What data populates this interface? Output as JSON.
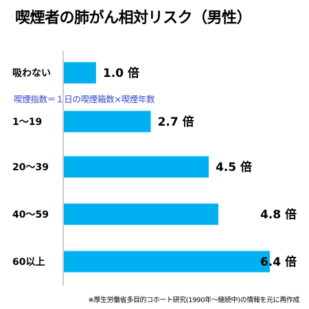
{
  "chart_data": {
    "type": "bar",
    "orientation": "horizontal",
    "title": "喫煙者の肺がん相対リスク（男性）",
    "categories": [
      "吸わない",
      "1～19",
      "20～39",
      "40～59",
      "60以上"
    ],
    "values": [
      1.0,
      2.7,
      4.5,
      4.8,
      6.4
    ],
    "value_labels": [
      "1.0 倍",
      "2.7 倍",
      "4.5 倍",
      "4.8 倍",
      "6.4 倍"
    ],
    "xlim": [
      0,
      6.4
    ],
    "grid": false,
    "legend": "none",
    "bar_color": "#00b0f0",
    "annotation": "喫煙指数＝１日の喫煙箱数×喫煙年数",
    "annotation_color": "#3344cc",
    "footnote": "※厚生労働省多目的コホート研究(1990年～継続中)の情報を元に再作成"
  }
}
